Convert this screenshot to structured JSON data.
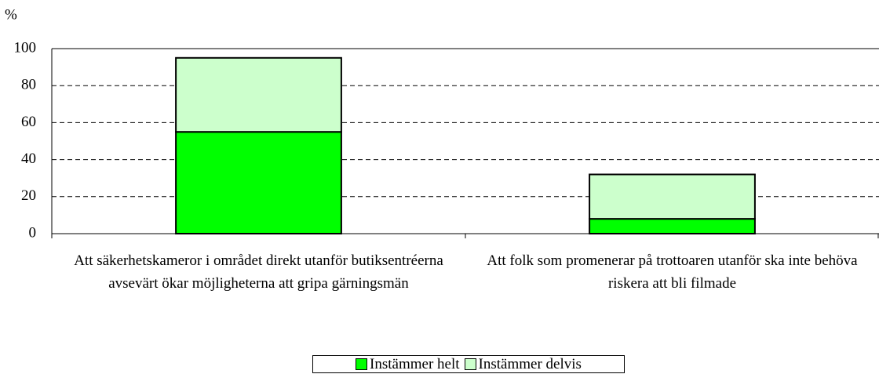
{
  "chart_data": {
    "type": "stacked_bar",
    "y_label": "%",
    "categories": [
      "Att säkerhetskameror i området direkt utanför butiksentréerna avsevärt ökar möjligheterna att gripa gärningsmän",
      "Att folk som promenerar på trottoaren utanför ska inte behöva riskera att bli filmade"
    ],
    "series": [
      {
        "name": "Instämmer helt",
        "color": "#00ff00",
        "values": [
          55,
          8
        ]
      },
      {
        "name": "Instämmer delvis",
        "color": "#ccffcc",
        "values": [
          40,
          24
        ]
      }
    ],
    "ylim": [
      0,
      100
    ],
    "yticks": [
      0,
      20,
      40,
      60,
      80,
      100
    ],
    "grid": true,
    "legend": "bottom"
  }
}
